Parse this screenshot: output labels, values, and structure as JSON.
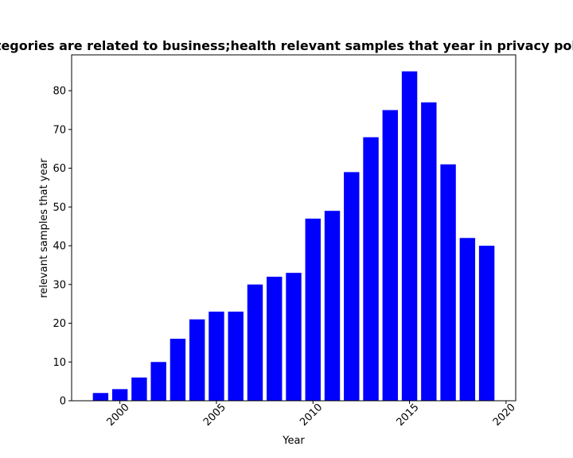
{
  "chart_data": {
    "type": "bar",
    "title": "Categories are related to business;health relevant samples that year in privacy policies",
    "xlabel": "Year",
    "ylabel": "relevant samples that year",
    "x": [
      1999,
      2000,
      2001,
      2002,
      2003,
      2004,
      2005,
      2006,
      2007,
      2008,
      2009,
      2010,
      2011,
      2012,
      2013,
      2014,
      2015,
      2016,
      2017,
      2018,
      2019
    ],
    "values": [
      2,
      3,
      6,
      10,
      16,
      21,
      23,
      23,
      30,
      32,
      33,
      47,
      49,
      59,
      68,
      75,
      85,
      77,
      61,
      42,
      40
    ],
    "xlim": [
      1997.5,
      2020.5
    ],
    "ylim": [
      0,
      89.25
    ],
    "xticks": [
      2000,
      2005,
      2010,
      2015,
      2020
    ],
    "yticks": [
      0,
      10,
      20,
      30,
      40,
      50,
      60,
      70,
      80
    ],
    "bar_color": "#0000ff",
    "grid": false
  }
}
